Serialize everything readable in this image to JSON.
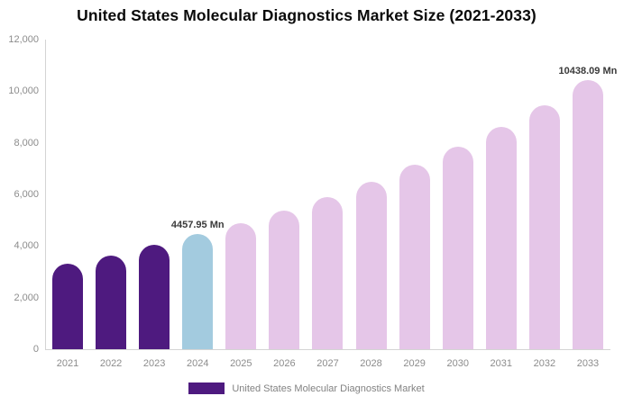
{
  "title": "United States Molecular Diagnostics Market Size (2021-2033)",
  "legend": {
    "label": "United States Molecular Diagnostics Market",
    "swatch_color": "#4E1A7F"
  },
  "colors": {
    "historical_bar": "#4E1A7F",
    "current_year_bar": "#A3CBDF",
    "forecast_bar": "#E5C6E8",
    "axis_line": "#d4d4d4",
    "tick_text": "#8c8c8c",
    "annotation_text": "#3a3a3a"
  },
  "chart_data": {
    "type": "bar",
    "title": "United States Molecular Diagnostics Market Size (2021-2033)",
    "xlabel": "",
    "ylabel": "",
    "unit": "Mn",
    "ylim": [
      0,
      12000
    ],
    "y_ticks": [
      0,
      2000,
      4000,
      6000,
      8000,
      10000,
      12000
    ],
    "y_tick_labels": [
      "0",
      "2,000",
      "4,000",
      "6,000",
      "8,000",
      "10,000",
      "12,000"
    ],
    "grid": false,
    "legend_position": "bottom",
    "categories": [
      "2021",
      "2022",
      "2023",
      "2024",
      "2025",
      "2026",
      "2027",
      "2028",
      "2029",
      "2030",
      "2031",
      "2032",
      "2033"
    ],
    "values": [
      3315,
      3630,
      4045,
      4457.95,
      4900,
      5380,
      5910,
      6500,
      7140,
      7850,
      8620,
      9470,
      10438.09
    ],
    "segments": [
      "historical",
      "historical",
      "historical",
      "current_year",
      "forecast",
      "forecast",
      "forecast",
      "forecast",
      "forecast",
      "forecast",
      "forecast",
      "forecast",
      "forecast"
    ],
    "annotations": [
      {
        "category": "2024",
        "text": "4457.95 Mn"
      },
      {
        "category": "2033",
        "text": "10438.09 Mn"
      }
    ]
  }
}
